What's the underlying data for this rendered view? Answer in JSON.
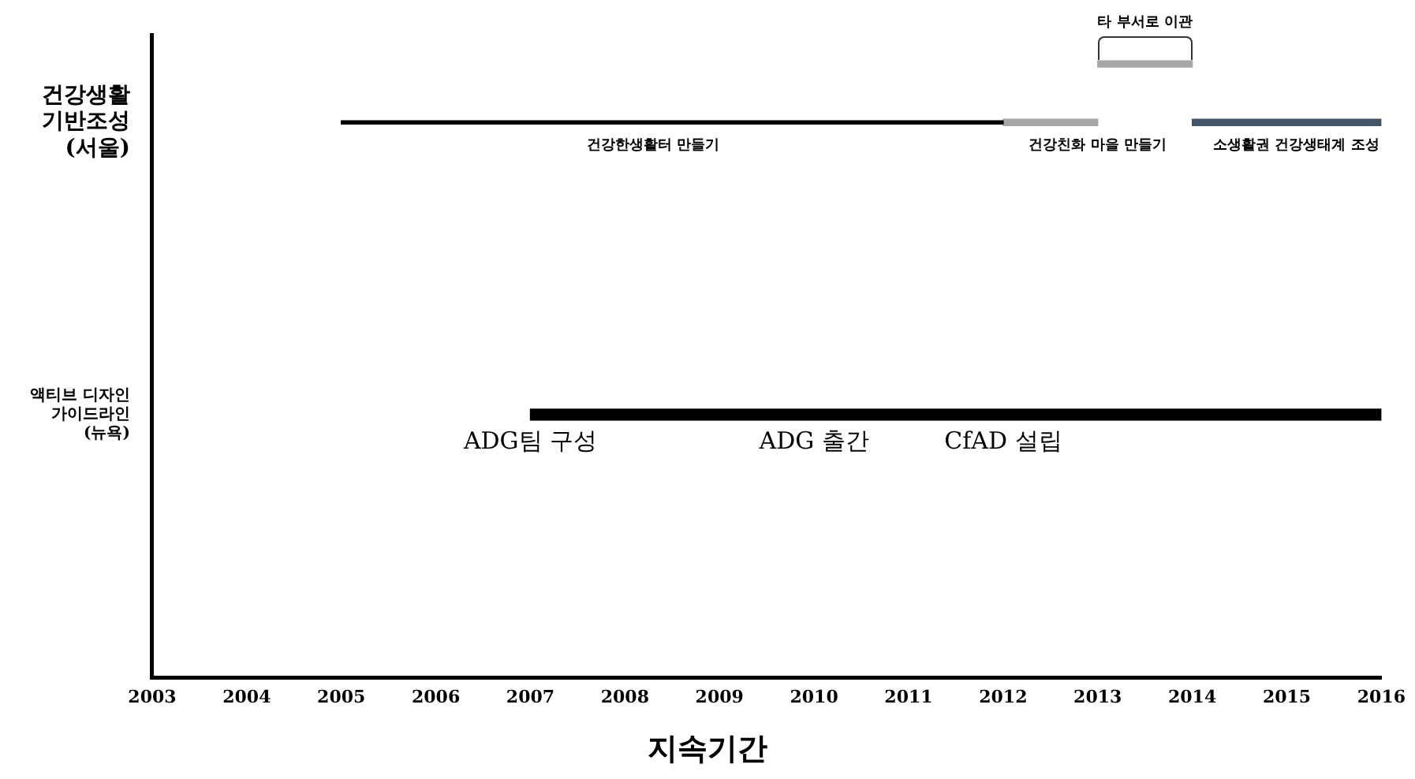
{
  "chart_data": {
    "type": "bar",
    "orientation": "horizontal",
    "xlabel": "지속기간",
    "categories": [
      null,
      "건강생활\n기반조성\n(서울)",
      null,
      null,
      null,
      null,
      "액티브 디자인\n가이드라인\n(뉴욕)",
      null,
      null,
      null,
      null
    ],
    "series": [
      {
        "color": "#000000",
        "base": [
          null,
          2005,
          null,
          null,
          null,
          null,
          null,
          null,
          null,
          null,
          null
        ],
        "values": [
          null,
          7,
          null,
          null,
          null,
          null,
          null,
          null,
          null,
          null,
          null
        ]
      },
      {
        "color": "#a6a6a6",
        "base": [
          null,
          2012,
          null,
          null,
          null,
          null,
          null,
          null,
          null,
          null,
          null
        ],
        "values": [
          null,
          1,
          null,
          null,
          null,
          null,
          null,
          null,
          null,
          null,
          null
        ]
      },
      {
        "color": "#a6a6a6",
        "base": [
          2013,
          null,
          null,
          null,
          null,
          null,
          null,
          null,
          null,
          null,
          null
        ],
        "values": [
          1,
          null,
          null,
          null,
          null,
          null,
          null,
          null,
          null,
          null,
          null
        ]
      },
      {
        "color": "#44546a",
        "base": [
          null,
          2014,
          null,
          null,
          null,
          null,
          null,
          null,
          null,
          null,
          null
        ],
        "values": [
          null,
          2,
          null,
          null,
          null,
          null,
          null,
          null,
          null,
          null,
          null
        ]
      },
      {
        "color": "#000000",
        "base": [
          null,
          null,
          null,
          null,
          null,
          null,
          2007,
          null,
          null,
          null,
          null
        ],
        "values": [
          null,
          null,
          null,
          null,
          null,
          null,
          9,
          null,
          null,
          null,
          null
        ]
      }
    ],
    "xlim": [
      2003,
      2016
    ],
    "xticks": [
      2003,
      2004,
      2005,
      2006,
      2007,
      2008,
      2009,
      2010,
      2011,
      2012,
      2013,
      2014,
      2015,
      2016
    ],
    "grid": false,
    "legend": false,
    "annotations": [
      {
        "text": "건강한생활터 만들기",
        "x": 2008.3,
        "y": "건강생활\n기반조성\n(서울)"
      },
      {
        "text": "건강친화 마을 만들기",
        "x": 2013,
        "y": "건강생활\n기반조성\n(서울)"
      },
      {
        "text": "소생활권 건강생태계 조성",
        "x": 2015.1,
        "y": "건강생활\n기반조성\n(서울)"
      },
      "타 부서로 이관",
      {
        "text": "ADG팀 구성",
        "x": 2007,
        "y": "액티브 디자인\n가이드라인\n(뉴욕)"
      },
      {
        "text": "ADG 출간",
        "x": 2010,
        "y": "액티브 디자인\n가이드라인\n(뉴욕)"
      },
      {
        "text": "CfAD 설립",
        "x": 2012,
        "y": "액티브 디자인\n가이드라인\n(뉴욕)"
      }
    ]
  }
}
